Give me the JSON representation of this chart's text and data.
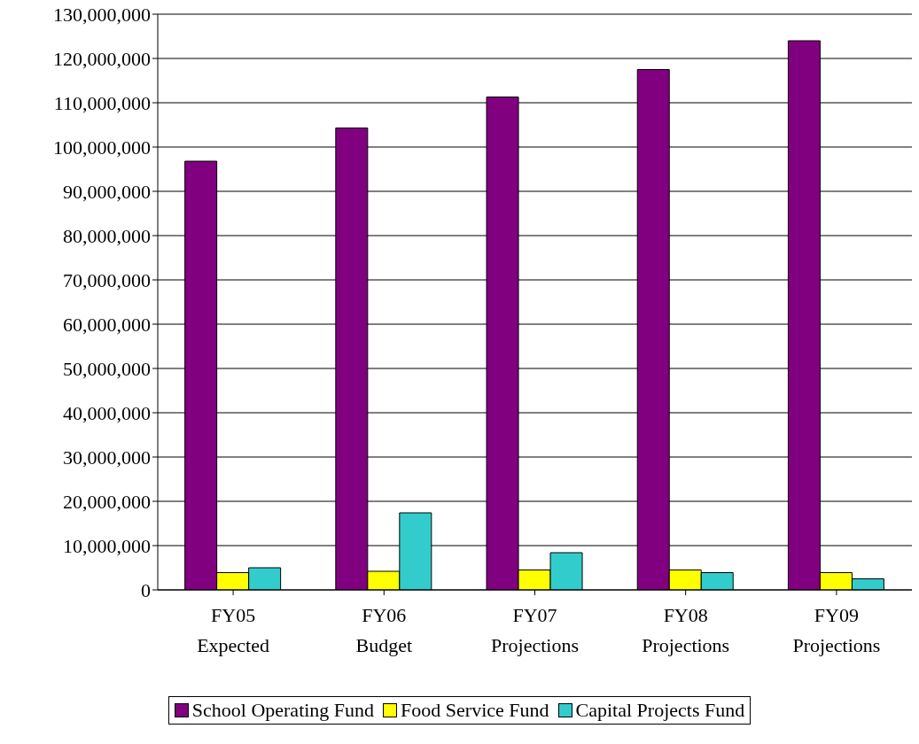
{
  "chart_data": {
    "type": "bar",
    "categories": [
      "FY05\nExpected",
      "FY06\nBudget",
      "FY07\nProjections",
      "FY08\nProjections",
      "FY09\nProjections"
    ],
    "series": [
      {
        "name": "School Operating Fund",
        "color": "#800080",
        "values": [
          96800000,
          104300000,
          111300000,
          117500000,
          124000000
        ]
      },
      {
        "name": "Food Service Fund",
        "color": "#ffff00",
        "values": [
          3900000,
          4200000,
          4500000,
          4500000,
          3900000
        ]
      },
      {
        "name": "Capital Projects Fund",
        "color": "#33cccc",
        "values": [
          5000000,
          17400000,
          8400000,
          3900000,
          2500000
        ]
      }
    ],
    "ylim": [
      0,
      130000000
    ],
    "yticks": [
      0,
      {
        "value": 10000000,
        "label": "10,000,000"
      },
      {
        "value": 20000000,
        "label": "20,000,000"
      },
      {
        "value": 30000000,
        "label": "30,000,000"
      },
      {
        "value": 40000000,
        "label": "40,000,000"
      },
      {
        "value": 50000000,
        "label": "50,000,000"
      },
      {
        "value": 60000000,
        "label": "60,000,000"
      },
      {
        "value": 70000000,
        "label": "70,000,000"
      },
      {
        "value": 80000000,
        "label": "80,000,000"
      },
      {
        "value": 90000000,
        "label": "90,000,000"
      },
      {
        "value": 100000000,
        "label": "100,000,000"
      },
      {
        "value": 110000000,
        "label": "110,000,000"
      },
      {
        "value": 120000000,
        "label": "120,000,000"
      },
      {
        "value": 130000000,
        "label": "130,000,000"
      }
    ],
    "grid": "y",
    "legend": "bottom"
  }
}
